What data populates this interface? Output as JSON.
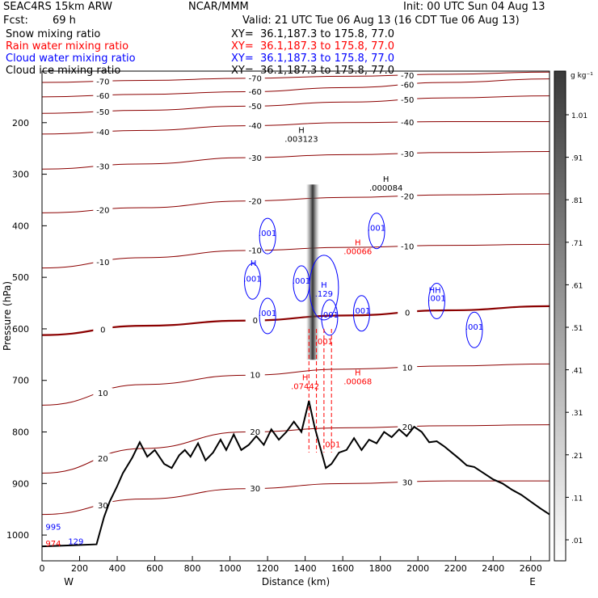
{
  "header": {
    "model": "SEAC4RS 15km ARW",
    "org": "NCAR/MMM",
    "init": "Init: 00 UTC Sun 04 Aug 13",
    "fcst_label": "Fcst:",
    "fcst_value": "69 h",
    "valid": "Valid: 21 UTC Tue 06 Aug 13 (16 CDT Tue 06 Aug 13)",
    "fields": [
      {
        "name": "Snow mixing ratio",
        "xy": "XY=  36.1,187.3 to 175.8, 77.0",
        "color": "#000000"
      },
      {
        "name": "Rain water mixing ratio",
        "xy": "XY=  36.1,187.3 to 175.8, 77.0",
        "color": "#ff0000"
      },
      {
        "name": "Cloud water mixing ratio",
        "xy": "XY=  36.1,187.3 to 175.8, 77.0",
        "color": "#0000ff"
      },
      {
        "name": "Cloud ice mixing ratio",
        "xy": "XY=  36.1,187.3 to 175.8, 77.0",
        "color": "#000000"
      }
    ]
  },
  "colors": {
    "temperature": "#8b0000",
    "freezing": "#8b0000",
    "rain": "#ff0000",
    "cloud_water": "#0000ff",
    "terrain": "#000000",
    "snow": "#333333"
  },
  "chart_data": {
    "type": "cross-section",
    "xlabel": "Distance (km)",
    "ylabel": "Pressure (hPa)",
    "xlim": [
      0,
      2700
    ],
    "ylim": [
      1050,
      100
    ],
    "x_ticks": [
      0,
      200,
      400,
      600,
      800,
      1000,
      1200,
      1400,
      1600,
      1800,
      2000,
      2200,
      2400,
      2600
    ],
    "y_ticks": [
      200,
      300,
      400,
      500,
      600,
      700,
      800,
      900,
      1000
    ],
    "end_labels": {
      "left": "W",
      "right": "E"
    },
    "colorbar": {
      "unit": "g kg⁻¹",
      "levels": [
        ".01",
        ".11",
        ".21",
        ".31",
        ".41",
        ".51",
        ".61",
        ".71",
        ".81",
        ".91",
        "1.01"
      ]
    },
    "isotherms": [
      {
        "label": "-70",
        "y": [
          122,
          118,
          114,
          110,
          106,
          102
        ]
      },
      {
        "label": "-60",
        "y": [
          150,
          145,
          140,
          132,
          122,
          115
        ]
      },
      {
        "label": "-50",
        "y": [
          182,
          176,
          168,
          160,
          152,
          148
        ]
      },
      {
        "label": "-40",
        "y": [
          222,
          215,
          206,
          200,
          198,
          198
        ]
      },
      {
        "label": "-30",
        "y": [
          290,
          280,
          268,
          262,
          258,
          256
        ]
      },
      {
        "label": "-20",
        "y": [
          375,
          365,
          352,
          345,
          340,
          338
        ]
      },
      {
        "label": "-10",
        "y": [
          482,
          462,
          448,
          442,
          438,
          436
        ]
      },
      {
        "label": "0",
        "y": [
          612,
          594,
          584,
          574,
          564,
          556
        ]
      },
      {
        "label": "10",
        "y": [
          748,
          708,
          690,
          678,
          672,
          668
        ]
      },
      {
        "label": "20",
        "y": [
          880,
          832,
          800,
          792,
          788,
          786
        ]
      },
      {
        "label": "30",
        "y": [
          960,
          930,
          910,
          900,
          895,
          895
        ]
      }
    ],
    "isotherm_x": [
      0,
      540,
      1080,
      1620,
      2160,
      2700
    ],
    "terrain": {
      "x": [
        0,
        150,
        290,
        330,
        360,
        400,
        430,
        480,
        520,
        560,
        600,
        650,
        690,
        730,
        760,
        790,
        830,
        870,
        910,
        950,
        980,
        1020,
        1060,
        1100,
        1140,
        1180,
        1220,
        1260,
        1300,
        1340,
        1380,
        1420,
        1450,
        1480,
        1510,
        1540,
        1580,
        1620,
        1660,
        1700,
        1740,
        1780,
        1820,
        1860,
        1900,
        1940,
        1980,
        2020,
        2060,
        2100,
        2140,
        2180,
        2220,
        2260,
        2300,
        2350,
        2400,
        2450,
        2500,
        2550,
        2600,
        2650,
        2700
      ],
      "p": [
        1022,
        1020,
        1018,
        965,
        935,
        905,
        880,
        850,
        820,
        848,
        835,
        862,
        870,
        845,
        835,
        848,
        822,
        855,
        840,
        815,
        835,
        805,
        835,
        825,
        808,
        825,
        795,
        815,
        800,
        780,
        800,
        740,
        790,
        830,
        870,
        862,
        840,
        835,
        812,
        835,
        815,
        822,
        800,
        810,
        795,
        808,
        790,
        800,
        820,
        818,
        828,
        840,
        852,
        865,
        868,
        880,
        892,
        900,
        912,
        922,
        935,
        948,
        960
      ]
    },
    "ice_max": {
      "label": "H",
      "value": ".003123",
      "x": 1380,
      "p": 220
    },
    "upper_max": {
      "label": "H",
      "value": ".000084",
      "x": 1830,
      "p": 315
    },
    "cloud_water_max": {
      "label": "H",
      "value": ".129",
      "x": 1500,
      "p": 520
    },
    "rain_max_1": {
      "label": "H",
      "value": ".07442",
      "x": 1400,
      "p": 700
    },
    "rain_max_2": {
      "label": "H",
      "value": ".00068",
      "x": 1680,
      "p": 690
    },
    "rain_max_3": {
      "label": "H",
      "value": ".00066",
      "x": 1680,
      "p": 438
    },
    "snow_column": {
      "x": 1440,
      "p_top": 320,
      "p_bottom": 660
    },
    "cloud_labels": [
      {
        "text": ".001",
        "x": 1200,
        "p": 420
      },
      {
        "text": ".001",
        "x": 1120,
        "p": 508
      },
      {
        "text": ".001",
        "x": 1200,
        "p": 575
      },
      {
        "text": ".001",
        "x": 1380,
        "p": 512
      },
      {
        "text": ".001",
        "x": 1530,
        "p": 578
      },
      {
        "text": ".001",
        "x": 1700,
        "p": 570
      },
      {
        "text": ".001",
        "x": 1780,
        "p": 410
      },
      {
        "text": ".001",
        "x": 2300,
        "p": 602
      },
      {
        "text": ".001",
        "x": 2100,
        "p": 546
      },
      {
        "text": "H",
        "x": 1125,
        "p": 478
      },
      {
        "text": "HH",
        "x": 2090,
        "p": 530
      }
    ],
    "rain_labels": [
      {
        "text": ".001",
        "x": 1500,
        "p": 630
      },
      {
        "text": ".001",
        "x": 1540,
        "p": 830
      }
    ],
    "bottom_left_labels": [
      {
        "text": "995",
        "color": "#0000ff",
        "x": 60,
        "p": 990
      },
      {
        "text": "974",
        "color": "#ff0000",
        "x": 60,
        "p": 1022
      },
      {
        "text": "129",
        "color": "#0000ff",
        "x": 180,
        "p": 1018
      }
    ]
  }
}
